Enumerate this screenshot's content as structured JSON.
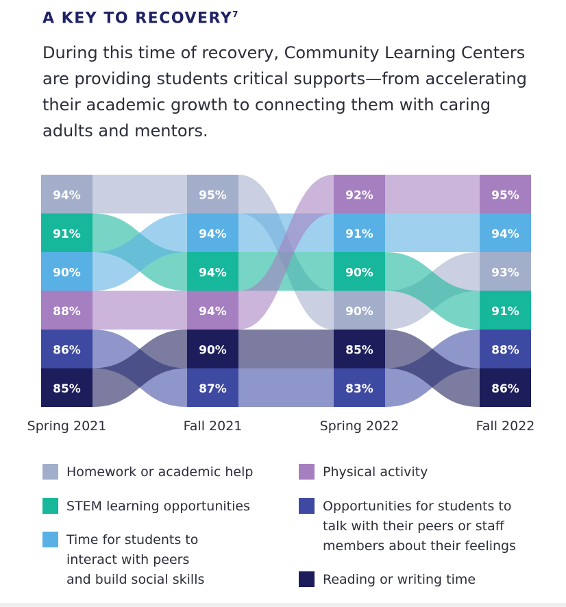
{
  "heading": {
    "title": "A KEY TO RECOVERY",
    "footnote": "7"
  },
  "intro": "During this time of recovery, Community Learning Centers are providing students critical supports—from accelerating their academic growth to connecting them with caring adults and mentors.",
  "chart_data": {
    "type": "bump",
    "categories": [
      "Spring 2021",
      "Fall 2021",
      "Spring 2022",
      "Fall 2022"
    ],
    "series": [
      {
        "name": "Homework or academic help",
        "color": "#a3aecb",
        "text": "#ffffff",
        "values": [
          94,
          95,
          90,
          93
        ],
        "ranks": [
          0,
          0,
          3,
          2
        ]
      },
      {
        "name": "STEM learning opportunities",
        "color": "#17b79b",
        "text": "#ffffff",
        "values": [
          91,
          94,
          90,
          91
        ],
        "ranks": [
          1,
          2,
          2,
          3
        ]
      },
      {
        "name": "Time for students to\ninteract with peers\nand build social skills",
        "color": "#59b0e4",
        "text": "#ffffff",
        "values": [
          90,
          94,
          91,
          94
        ],
        "ranks": [
          2,
          1,
          1,
          1
        ]
      },
      {
        "name": "Physical activity",
        "color": "#a57fc0",
        "text": "#ffffff",
        "values": [
          88,
          94,
          92,
          95
        ],
        "ranks": [
          3,
          3,
          0,
          0
        ]
      },
      {
        "name": "Opportunities for students to\ntalk with their peers or staff\nmembers about their feelings",
        "color": "#3e4aa2",
        "text": "#ffffff",
        "values": [
          86,
          87,
          83,
          88
        ],
        "ranks": [
          4,
          5,
          5,
          4
        ]
      },
      {
        "name": "Reading or writing time",
        "color": "#1c1d5a",
        "text": "#ffffff",
        "values": [
          85,
          90,
          85,
          86
        ],
        "ranks": [
          5,
          4,
          4,
          5
        ]
      }
    ]
  }
}
